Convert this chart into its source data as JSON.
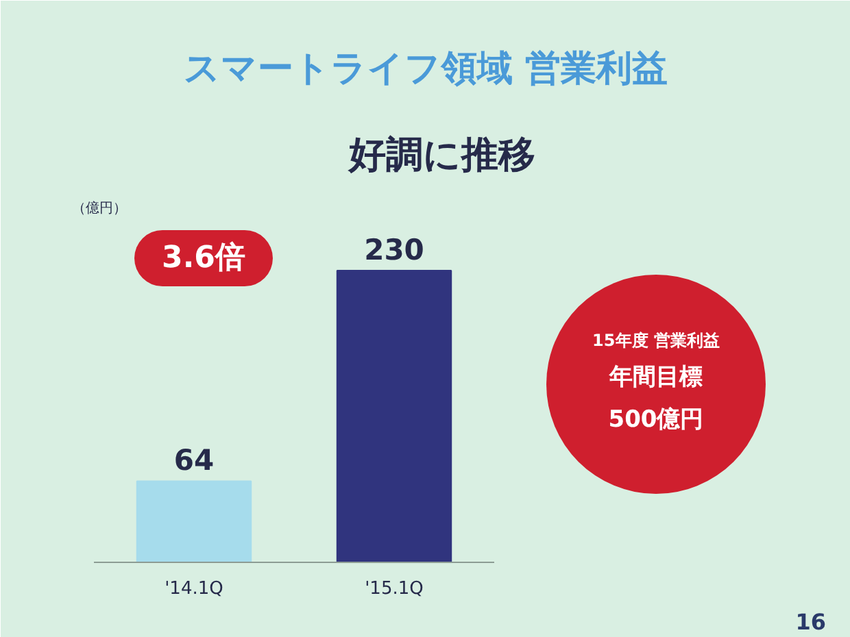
{
  "chart_data": {
    "type": "bar",
    "title": "スマートライフ領域 営業利益",
    "subtitle": "好調に推移",
    "ylabel": "（億円）",
    "categories": [
      "'14.1Q",
      "'15.1Q"
    ],
    "values": [
      64,
      230
    ],
    "colors": [
      "#a6dcec",
      "#30347e"
    ],
    "data_labels": true,
    "tick_labels": "x",
    "annotations": [
      "3.6倍",
      "15年度 営業利益",
      "年間目標",
      "500億円",
      "16"
    ]
  }
}
